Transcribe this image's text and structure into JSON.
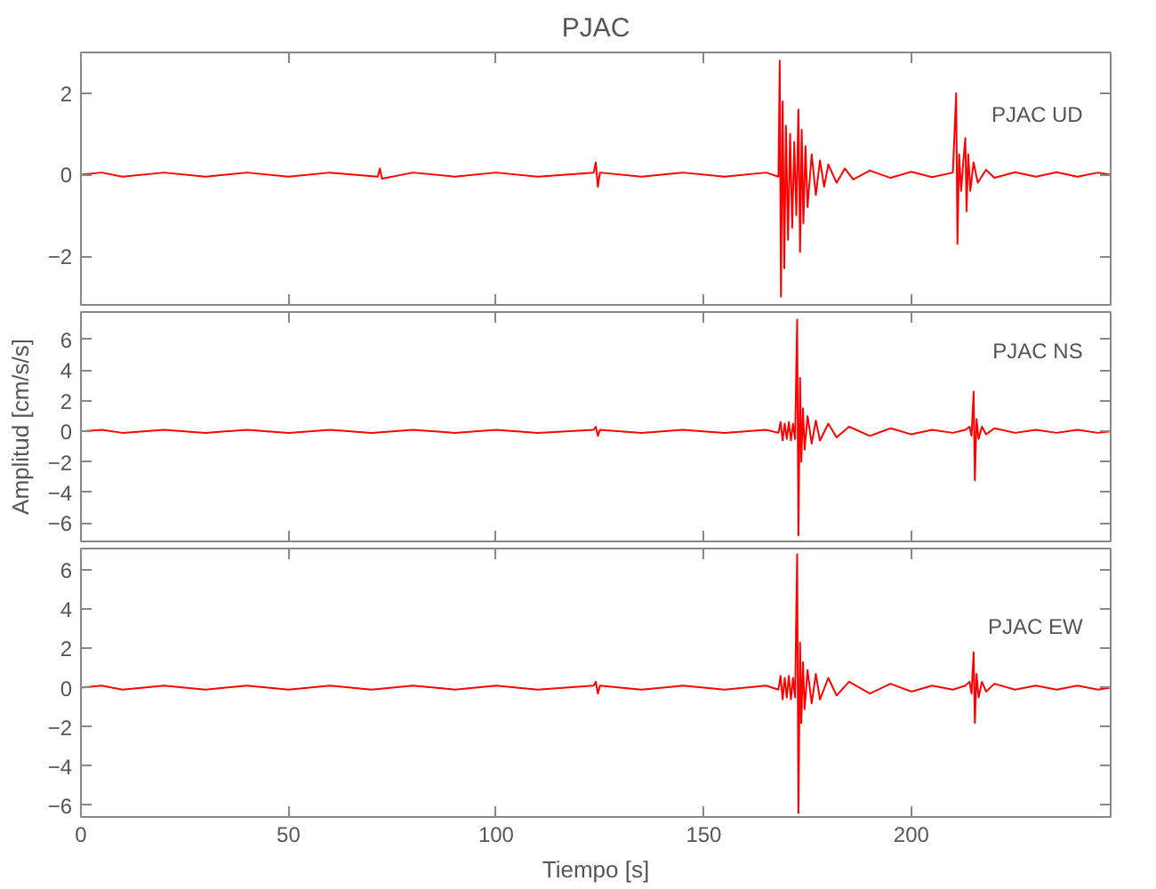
{
  "chart_data": [
    {
      "type": "line",
      "title": "PJAC",
      "annotations": [
        "PJAC   UD"
      ],
      "tick_labels": "y",
      "grid": false,
      "xlim": [
        0,
        248
      ],
      "xticks": [
        0,
        50,
        100,
        150,
        200
      ],
      "ylim": [
        -3.2,
        3.0
      ],
      "yticks": [
        -2,
        0,
        2
      ],
      "series": [
        {
          "color": "#ff0000",
          "x": [
            0,
            5,
            10,
            20,
            30,
            40,
            50,
            60,
            71.5,
            72,
            72.5,
            80,
            90,
            100,
            110,
            123.5,
            124,
            124.5,
            125,
            135,
            145,
            155,
            165,
            168,
            168.3,
            168.6,
            169,
            169.4,
            169.8,
            170.3,
            170.8,
            171.3,
            171.8,
            172.3,
            172.8,
            173.2,
            173.6,
            174.0,
            174.5,
            175,
            176,
            177,
            178,
            179,
            180,
            182,
            184,
            186,
            190,
            195,
            200,
            205,
            210,
            210.8,
            211.1,
            211.5,
            212,
            212.5,
            213,
            213.3,
            213.7,
            214.2,
            215,
            216,
            218,
            220,
            225,
            230,
            235,
            240,
            245,
            248
          ],
          "values": [
            0,
            0.05,
            -0.05,
            0.05,
            -0.05,
            0.05,
            -0.05,
            0.05,
            -0.05,
            0.15,
            -0.1,
            0.05,
            -0.05,
            0.05,
            -0.05,
            0.05,
            0.3,
            -0.3,
            0.05,
            -0.05,
            0.05,
            -0.05,
            0.05,
            -0.05,
            2.8,
            -3.0,
            1.8,
            -2.3,
            1.2,
            -1.6,
            1.0,
            -1.3,
            0.8,
            -1.0,
            1.6,
            -1.9,
            1.1,
            -1.2,
            0.7,
            -0.8,
            0.5,
            -0.5,
            0.35,
            -0.3,
            0.25,
            -0.2,
            0.15,
            -0.12,
            0.1,
            -0.08,
            0.07,
            -0.06,
            0.05,
            2.0,
            -1.7,
            0.5,
            -0.4,
            0.3,
            0.9,
            -0.9,
            0.5,
            -0.4,
            0.3,
            -0.2,
            0.12,
            -0.08,
            0.06,
            -0.05,
            0.06,
            -0.05,
            0.05,
            0
          ]
        }
      ]
    },
    {
      "type": "line",
      "ylabel": "Amplitud [cm/s/s]",
      "annotations": [
        "PJAC   NS"
      ],
      "tick_labels": "y",
      "grid": false,
      "xlim": [
        0,
        248
      ],
      "xticks": [
        0,
        50,
        100,
        150,
        200
      ],
      "ylim": [
        -7.2,
        7.8
      ],
      "yticks": [
        -6,
        -4,
        -2,
        0,
        2,
        4,
        6
      ],
      "series": [
        {
          "color": "#ff0000",
          "x": [
            0,
            5,
            10,
            20,
            30,
            40,
            50,
            60,
            70,
            80,
            90,
            100,
            110,
            123.5,
            124,
            124.5,
            125,
            135,
            145,
            155,
            165,
            168,
            168.5,
            169,
            169.5,
            170,
            170.5,
            171,
            171.5,
            172,
            172.5,
            172.8,
            173.2,
            173.5,
            173.9,
            174.3,
            175,
            176,
            177,
            178,
            180,
            182,
            185,
            190,
            195,
            200,
            205,
            210,
            213,
            214,
            214.5,
            215,
            215.3,
            215.7,
            216.2,
            217,
            218,
            220,
            225,
            230,
            235,
            240,
            245,
            248
          ],
          "values": [
            0,
            0.1,
            -0.1,
            0.1,
            -0.1,
            0.1,
            -0.1,
            0.1,
            -0.1,
            0.1,
            -0.1,
            0.1,
            -0.1,
            0.1,
            0.3,
            -0.3,
            0.1,
            -0.1,
            0.1,
            -0.1,
            0.1,
            -0.1,
            0.6,
            -0.6,
            0.5,
            -0.5,
            0.6,
            -0.6,
            0.5,
            -0.5,
            7.3,
            -6.8,
            3.5,
            -2.0,
            1.5,
            -1.2,
            1.0,
            -0.8,
            0.7,
            -0.6,
            0.5,
            -0.4,
            0.3,
            -0.3,
            0.2,
            -0.2,
            0.1,
            -0.1,
            0.1,
            0.3,
            -0.3,
            2.6,
            -3.2,
            0.8,
            -0.5,
            0.3,
            -0.2,
            0.2,
            -0.1,
            0.1,
            -0.1,
            0.1,
            -0.1,
            0
          ]
        }
      ]
    },
    {
      "type": "line",
      "xlabel": "Tiempo [s]",
      "annotations": [
        "PJAC   EW"
      ],
      "grid": false,
      "xlim": [
        0,
        248
      ],
      "xticks": [
        0,
        50,
        100,
        150,
        200
      ],
      "ylim": [
        -6.6,
        7.1
      ],
      "yticks": [
        -6,
        -4,
        -2,
        0,
        2,
        4,
        6
      ],
      "series": [
        {
          "color": "#ff0000",
          "x": [
            0,
            5,
            10,
            20,
            30,
            40,
            50,
            60,
            70,
            80,
            90,
            100,
            110,
            123.5,
            124,
            124.5,
            125,
            135,
            145,
            155,
            165,
            168,
            168.5,
            169,
            169.5,
            170,
            170.5,
            171,
            171.5,
            172,
            172.5,
            172.8,
            173.2,
            173.5,
            173.9,
            174.3,
            175,
            176,
            177,
            178,
            180,
            182,
            185,
            190,
            195,
            200,
            205,
            210,
            213,
            214,
            214.5,
            215,
            215.3,
            215.7,
            216.2,
            217,
            218,
            220,
            225,
            230,
            235,
            240,
            245,
            248
          ],
          "values": [
            0,
            0.1,
            -0.1,
            0.1,
            -0.1,
            0.1,
            -0.1,
            0.1,
            -0.1,
            0.1,
            -0.1,
            0.1,
            -0.1,
            0.1,
            0.3,
            -0.3,
            0.1,
            -0.1,
            0.1,
            -0.1,
            0.1,
            -0.1,
            0.6,
            -0.6,
            0.5,
            -0.5,
            0.6,
            -0.6,
            0.5,
            -0.5,
            6.8,
            -6.4,
            2.3,
            -1.8,
            1.3,
            -1.1,
            0.9,
            -0.8,
            0.7,
            -0.6,
            0.5,
            -0.4,
            0.3,
            -0.3,
            0.2,
            -0.2,
            0.1,
            -0.1,
            0.1,
            0.3,
            -0.3,
            1.8,
            -1.8,
            0.7,
            -0.5,
            0.3,
            -0.2,
            0.2,
            -0.1,
            0.1,
            -0.1,
            0.1,
            -0.1,
            0
          ]
        }
      ]
    }
  ]
}
